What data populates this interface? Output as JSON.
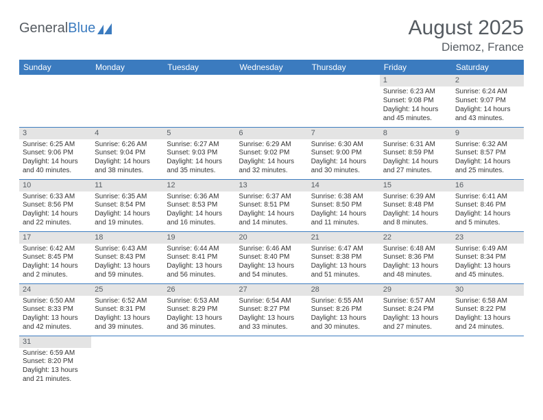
{
  "logo": {
    "text1": "General",
    "text2": "Blue"
  },
  "title": "August 2025",
  "location": "Diemoz, France",
  "weekdays": [
    "Sunday",
    "Monday",
    "Tuesday",
    "Wednesday",
    "Thursday",
    "Friday",
    "Saturday"
  ],
  "colors": {
    "header_bg": "#3b7bbf",
    "header_fg": "#ffffff",
    "daynum_bg": "#e4e4e4",
    "text": "#555b61",
    "cell_border": "#3b7bbf"
  },
  "weeks": [
    [
      null,
      null,
      null,
      null,
      null,
      {
        "n": "1",
        "sr": "6:23 AM",
        "ss": "9:08 PM",
        "dl": "14 hours and 45 minutes."
      },
      {
        "n": "2",
        "sr": "6:24 AM",
        "ss": "9:07 PM",
        "dl": "14 hours and 43 minutes."
      }
    ],
    [
      {
        "n": "3",
        "sr": "6:25 AM",
        "ss": "9:06 PM",
        "dl": "14 hours and 40 minutes."
      },
      {
        "n": "4",
        "sr": "6:26 AM",
        "ss": "9:04 PM",
        "dl": "14 hours and 38 minutes."
      },
      {
        "n": "5",
        "sr": "6:27 AM",
        "ss": "9:03 PM",
        "dl": "14 hours and 35 minutes."
      },
      {
        "n": "6",
        "sr": "6:29 AM",
        "ss": "9:02 PM",
        "dl": "14 hours and 32 minutes."
      },
      {
        "n": "7",
        "sr": "6:30 AM",
        "ss": "9:00 PM",
        "dl": "14 hours and 30 minutes."
      },
      {
        "n": "8",
        "sr": "6:31 AM",
        "ss": "8:59 PM",
        "dl": "14 hours and 27 minutes."
      },
      {
        "n": "9",
        "sr": "6:32 AM",
        "ss": "8:57 PM",
        "dl": "14 hours and 25 minutes."
      }
    ],
    [
      {
        "n": "10",
        "sr": "6:33 AM",
        "ss": "8:56 PM",
        "dl": "14 hours and 22 minutes."
      },
      {
        "n": "11",
        "sr": "6:35 AM",
        "ss": "8:54 PM",
        "dl": "14 hours and 19 minutes."
      },
      {
        "n": "12",
        "sr": "6:36 AM",
        "ss": "8:53 PM",
        "dl": "14 hours and 16 minutes."
      },
      {
        "n": "13",
        "sr": "6:37 AM",
        "ss": "8:51 PM",
        "dl": "14 hours and 14 minutes."
      },
      {
        "n": "14",
        "sr": "6:38 AM",
        "ss": "8:50 PM",
        "dl": "14 hours and 11 minutes."
      },
      {
        "n": "15",
        "sr": "6:39 AM",
        "ss": "8:48 PM",
        "dl": "14 hours and 8 minutes."
      },
      {
        "n": "16",
        "sr": "6:41 AM",
        "ss": "8:46 PM",
        "dl": "14 hours and 5 minutes."
      }
    ],
    [
      {
        "n": "17",
        "sr": "6:42 AM",
        "ss": "8:45 PM",
        "dl": "14 hours and 2 minutes."
      },
      {
        "n": "18",
        "sr": "6:43 AM",
        "ss": "8:43 PM",
        "dl": "13 hours and 59 minutes."
      },
      {
        "n": "19",
        "sr": "6:44 AM",
        "ss": "8:41 PM",
        "dl": "13 hours and 56 minutes."
      },
      {
        "n": "20",
        "sr": "6:46 AM",
        "ss": "8:40 PM",
        "dl": "13 hours and 54 minutes."
      },
      {
        "n": "21",
        "sr": "6:47 AM",
        "ss": "8:38 PM",
        "dl": "13 hours and 51 minutes."
      },
      {
        "n": "22",
        "sr": "6:48 AM",
        "ss": "8:36 PM",
        "dl": "13 hours and 48 minutes."
      },
      {
        "n": "23",
        "sr": "6:49 AM",
        "ss": "8:34 PM",
        "dl": "13 hours and 45 minutes."
      }
    ],
    [
      {
        "n": "24",
        "sr": "6:50 AM",
        "ss": "8:33 PM",
        "dl": "13 hours and 42 minutes."
      },
      {
        "n": "25",
        "sr": "6:52 AM",
        "ss": "8:31 PM",
        "dl": "13 hours and 39 minutes."
      },
      {
        "n": "26",
        "sr": "6:53 AM",
        "ss": "8:29 PM",
        "dl": "13 hours and 36 minutes."
      },
      {
        "n": "27",
        "sr": "6:54 AM",
        "ss": "8:27 PM",
        "dl": "13 hours and 33 minutes."
      },
      {
        "n": "28",
        "sr": "6:55 AM",
        "ss": "8:26 PM",
        "dl": "13 hours and 30 minutes."
      },
      {
        "n": "29",
        "sr": "6:57 AM",
        "ss": "8:24 PM",
        "dl": "13 hours and 27 minutes."
      },
      {
        "n": "30",
        "sr": "6:58 AM",
        "ss": "8:22 PM",
        "dl": "13 hours and 24 minutes."
      }
    ],
    [
      {
        "n": "31",
        "sr": "6:59 AM",
        "ss": "8:20 PM",
        "dl": "13 hours and 21 minutes."
      },
      null,
      null,
      null,
      null,
      null,
      null
    ]
  ],
  "labels": {
    "sunrise": "Sunrise:",
    "sunset": "Sunset:",
    "daylight": "Daylight:"
  }
}
